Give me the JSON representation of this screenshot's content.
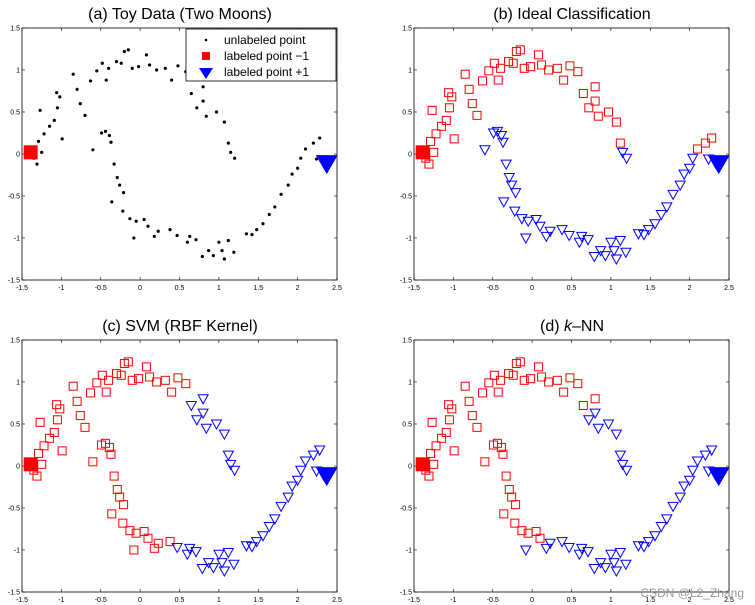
{
  "colors": {
    "negative": "#ff0000",
    "positive": "#0000ff",
    "unlabeled": "#000000",
    "axes": "#000000"
  },
  "watermark": "CSDN @L2_Zhang",
  "chart_data": [
    {
      "type": "scatter",
      "title_parts": [
        "(a) Toy Data (Two Moons)"
      ],
      "xlim": [
        -1.5,
        2.5
      ],
      "ylim": [
        -1.5,
        1.5
      ],
      "xticks": [
        "-1.5",
        "-1",
        "-0.5",
        "0",
        "0.5",
        "1",
        "1.5",
        "2",
        "2.5"
      ],
      "yticks": [
        "-1.5",
        "-1",
        "-0.5",
        "0",
        "0.5",
        "1",
        "1.5"
      ],
      "legend": {
        "position": "top-right",
        "entries": [
          "unlabeled point",
          "labeled point  −1",
          "labeled point +1"
        ]
      },
      "labeled_negative": [
        -1.39,
        0.02
      ],
      "labeled_positive": [
        2.37,
        -0.12
      ],
      "classification": "none"
    },
    {
      "type": "scatter",
      "title_parts": [
        "(b)  Ideal Classification"
      ],
      "xlim": [
        -1.5,
        2.5
      ],
      "ylim": [
        -1.5,
        1.5
      ],
      "xticks": [
        "-1.5",
        "-1",
        "-0.5",
        "0",
        "0.5",
        "1",
        "1.5",
        "2",
        "2.5"
      ],
      "yticks": [
        "-1.5",
        "-1",
        "-0.5",
        "0",
        "0.5",
        "1",
        "1.5"
      ],
      "labeled_negative": [
        -1.39,
        0.02
      ],
      "labeled_positive": [
        2.37,
        -0.12
      ],
      "classification": "ideal"
    },
    {
      "type": "scatter",
      "title_parts": [
        "(c)  SVM  (RBF Kernel)"
      ],
      "xlim": [
        -1.5,
        2.5
      ],
      "ylim": [
        -1.5,
        1.5
      ],
      "xticks": [
        "-1.5",
        "-1",
        "-0.5",
        "0",
        "0.5",
        "1",
        "1.5",
        "2",
        "2.5"
      ],
      "yticks": [
        "-1.5",
        "-1",
        "-0.5",
        "0",
        "0.5",
        "1",
        "1.5"
      ],
      "labeled_negative": [
        -1.39,
        0.02
      ],
      "labeled_positive": [
        2.37,
        -0.12
      ],
      "classification": "svm"
    },
    {
      "type": "scatter",
      "title_parts": [
        "(d)  ",
        "k",
        "–NN"
      ],
      "xlim": [
        -1.5,
        2.5
      ],
      "ylim": [
        -1.5,
        1.5
      ],
      "xticks": [
        "-1.5",
        "-1",
        "-0.5",
        "0",
        "0.5",
        "1",
        "1.5",
        "2",
        "2.5"
      ],
      "yticks": [
        "-1.5",
        "-1",
        "-0.5",
        "0",
        "0.5",
        "1",
        "1.5"
      ],
      "labeled_negative": [
        -1.39,
        0.02
      ],
      "labeled_positive": [
        2.37,
        -0.12
      ],
      "classification": "knn"
    }
  ],
  "points": [
    [
      -1.35,
      -0.05
    ],
    [
      -1.31,
      -0.12
    ],
    [
      -1.25,
      0.02
    ],
    [
      -1.29,
      0.15
    ],
    [
      -1.22,
      0.24
    ],
    [
      -1.27,
      0.52
    ],
    [
      -1.15,
      0.33
    ],
    [
      -1.09,
      0.4
    ],
    [
      -1.05,
      0.55
    ],
    [
      -1.02,
      0.68
    ],
    [
      -0.99,
      0.18
    ],
    [
      -1.06,
      0.73
    ],
    [
      -0.85,
      0.95
    ],
    [
      -0.8,
      0.77
    ],
    [
      -0.76,
      0.6
    ],
    [
      -0.7,
      0.46
    ],
    [
      -0.63,
      0.87
    ],
    [
      -0.55,
      0.99
    ],
    [
      -0.48,
      1.08
    ],
    [
      -0.4,
      1.02
    ],
    [
      -0.43,
      0.88
    ],
    [
      -0.3,
      1.1
    ],
    [
      -0.2,
      1.22
    ],
    [
      -0.24,
      1.08
    ],
    [
      -0.15,
      1.24
    ],
    [
      -0.1,
      1.02
    ],
    [
      -0.02,
      1.04
    ],
    [
      0.08,
      1.18
    ],
    [
      0.12,
      1.06
    ],
    [
      0.21,
      1.0
    ],
    [
      0.32,
      1.02
    ],
    [
      0.4,
      0.88
    ],
    [
      0.48,
      1.05
    ],
    [
      0.58,
      0.98
    ],
    [
      0.65,
      0.72
    ],
    [
      0.72,
      0.55
    ],
    [
      0.8,
      0.63
    ],
    [
      0.84,
      0.45
    ],
    [
      0.97,
      0.5
    ],
    [
      0.8,
      0.8
    ],
    [
      1.07,
      0.38
    ],
    [
      1.12,
      0.13
    ],
    [
      1.15,
      0.02
    ],
    [
      1.2,
      -0.05
    ],
    [
      -0.49,
      0.25
    ],
    [
      -0.44,
      0.27
    ],
    [
      -0.39,
      0.22
    ],
    [
      -0.37,
      0.14
    ],
    [
      -0.6,
      0.05
    ],
    [
      -0.33,
      -0.12
    ],
    [
      -0.29,
      -0.28
    ],
    [
      -0.26,
      -0.37
    ],
    [
      -0.21,
      -0.46
    ],
    [
      -0.36,
      -0.57
    ],
    [
      -0.22,
      -0.68
    ],
    [
      -0.13,
      -0.77
    ],
    [
      -0.05,
      -0.8
    ],
    [
      0.05,
      -0.78
    ],
    [
      0.1,
      -0.86
    ],
    [
      -0.08,
      -1.0
    ],
    [
      0.18,
      -0.98
    ],
    [
      0.23,
      -0.92
    ],
    [
      0.38,
      -0.9
    ],
    [
      0.47,
      -0.97
    ],
    [
      0.6,
      -1.05
    ],
    [
      0.63,
      -0.98
    ],
    [
      0.71,
      -1.02
    ],
    [
      0.79,
      -1.22
    ],
    [
      0.87,
      -1.15
    ],
    [
      0.93,
      -1.21
    ],
    [
      1.0,
      -1.05
    ],
    [
      1.04,
      -1.15
    ],
    [
      1.07,
      -1.25
    ],
    [
      1.12,
      -1.03
    ],
    [
      1.19,
      -1.17
    ],
    [
      1.35,
      -0.95
    ],
    [
      1.42,
      -0.96
    ],
    [
      1.48,
      -0.9
    ],
    [
      1.56,
      -0.83
    ],
    [
      1.64,
      -0.72
    ],
    [
      1.71,
      -0.63
    ],
    [
      1.79,
      -0.48
    ],
    [
      1.88,
      -0.37
    ],
    [
      1.93,
      -0.24
    ],
    [
      2.0,
      -0.17
    ],
    [
      2.04,
      -0.05
    ],
    [
      2.1,
      0.06
    ],
    [
      2.2,
      0.13
    ],
    [
      2.28,
      0.19
    ],
    [
      2.24,
      -0.06
    ],
    [
      2.33,
      -0.11
    ]
  ]
}
